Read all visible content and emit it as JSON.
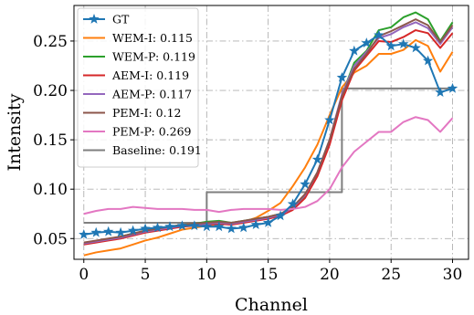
{
  "chart_data": {
    "type": "line",
    "xlabel": "Channel",
    "ylabel": "Intensity",
    "xlim": [
      -0.8,
      31.3
    ],
    "ylim": [
      0.029,
      0.286
    ],
    "xticks": [
      0,
      5,
      10,
      15,
      20,
      25,
      30
    ],
    "yticks": [
      0.05,
      0.1,
      0.15,
      0.2,
      0.25
    ],
    "ytick_labels": [
      "0.05",
      "0.10",
      "0.15",
      "0.20",
      "0.25"
    ],
    "grid": true,
    "legend_position": "upper-left",
    "x": [
      0,
      1,
      2,
      3,
      4,
      5,
      6,
      7,
      8,
      9,
      10,
      11,
      12,
      13,
      14,
      15,
      16,
      17,
      18,
      19,
      20,
      21,
      22,
      23,
      24,
      25,
      26,
      27,
      28,
      29,
      30
    ],
    "series": [
      {
        "name": "GT",
        "color": "#1f77b4",
        "marker": "star",
        "values": [
          0.054,
          0.056,
          0.057,
          0.056,
          0.058,
          0.06,
          0.061,
          0.062,
          0.063,
          0.063,
          0.062,
          0.062,
          0.06,
          0.061,
          0.064,
          0.066,
          0.073,
          0.085,
          0.105,
          0.13,
          0.17,
          0.213,
          0.24,
          0.248,
          0.256,
          0.245,
          0.247,
          0.243,
          0.23,
          0.198,
          0.202
        ]
      },
      {
        "name": "WEM-I: 0.115",
        "color": "#ff7f0e",
        "values": [
          0.033,
          0.036,
          0.038,
          0.04,
          0.044,
          0.048,
          0.051,
          0.055,
          0.059,
          0.061,
          0.063,
          0.064,
          0.065,
          0.067,
          0.071,
          0.078,
          0.086,
          0.103,
          0.122,
          0.145,
          0.175,
          0.203,
          0.218,
          0.225,
          0.237,
          0.237,
          0.241,
          0.251,
          0.245,
          0.219,
          0.239
        ]
      },
      {
        "name": "WEM-P: 0.119",
        "color": "#2ca02c",
        "values": [
          0.045,
          0.047,
          0.049,
          0.052,
          0.055,
          0.058,
          0.06,
          0.062,
          0.064,
          0.065,
          0.067,
          0.068,
          0.066,
          0.068,
          0.07,
          0.072,
          0.075,
          0.08,
          0.093,
          0.115,
          0.148,
          0.195,
          0.228,
          0.24,
          0.261,
          0.264,
          0.274,
          0.279,
          0.272,
          0.25,
          0.269
        ]
      },
      {
        "name": "AEM-I: 0.119",
        "color": "#d62728",
        "values": [
          0.044,
          0.046,
          0.048,
          0.05,
          0.053,
          0.056,
          0.058,
          0.06,
          0.062,
          0.063,
          0.064,
          0.065,
          0.064,
          0.066,
          0.068,
          0.07,
          0.073,
          0.079,
          0.091,
          0.113,
          0.145,
          0.19,
          0.22,
          0.235,
          0.25,
          0.249,
          0.254,
          0.261,
          0.258,
          0.243,
          0.258
        ]
      },
      {
        "name": "AEM-P: 0.117",
        "color": "#9467bd",
        "values": [
          0.045,
          0.047,
          0.049,
          0.051,
          0.054,
          0.057,
          0.059,
          0.061,
          0.063,
          0.064,
          0.065,
          0.066,
          0.065,
          0.067,
          0.069,
          0.071,
          0.074,
          0.081,
          0.094,
          0.117,
          0.15,
          0.196,
          0.225,
          0.239,
          0.253,
          0.257,
          0.264,
          0.269,
          0.263,
          0.247,
          0.264
        ]
      },
      {
        "name": "PEM-I: 0.12",
        "color": "#8c564b",
        "values": [
          0.046,
          0.048,
          0.05,
          0.052,
          0.055,
          0.058,
          0.06,
          0.062,
          0.064,
          0.065,
          0.066,
          0.067,
          0.066,
          0.068,
          0.07,
          0.072,
          0.075,
          0.082,
          0.095,
          0.117,
          0.15,
          0.194,
          0.222,
          0.237,
          0.255,
          0.26,
          0.266,
          0.272,
          0.266,
          0.249,
          0.266
        ]
      },
      {
        "name": "PEM-P: 0.269",
        "color": "#e377c2",
        "values": [
          0.075,
          0.078,
          0.08,
          0.08,
          0.082,
          0.081,
          0.08,
          0.08,
          0.08,
          0.079,
          0.079,
          0.077,
          0.079,
          0.08,
          0.08,
          0.08,
          0.079,
          0.08,
          0.082,
          0.088,
          0.1,
          0.122,
          0.138,
          0.148,
          0.158,
          0.158,
          0.168,
          0.173,
          0.17,
          0.158,
          0.172
        ]
      },
      {
        "name": "Baseline: 0.191",
        "color": "#7f7f7f",
        "step": true,
        "values": [
          0.066,
          0.066,
          0.066,
          0.066,
          0.066,
          0.066,
          0.066,
          0.066,
          0.066,
          0.066,
          0.097,
          0.097,
          0.097,
          0.097,
          0.097,
          0.097,
          0.097,
          0.097,
          0.097,
          0.097,
          0.097,
          0.202,
          0.202,
          0.202,
          0.202,
          0.202,
          0.202,
          0.202,
          0.202,
          0.202,
          0.202
        ]
      }
    ]
  }
}
